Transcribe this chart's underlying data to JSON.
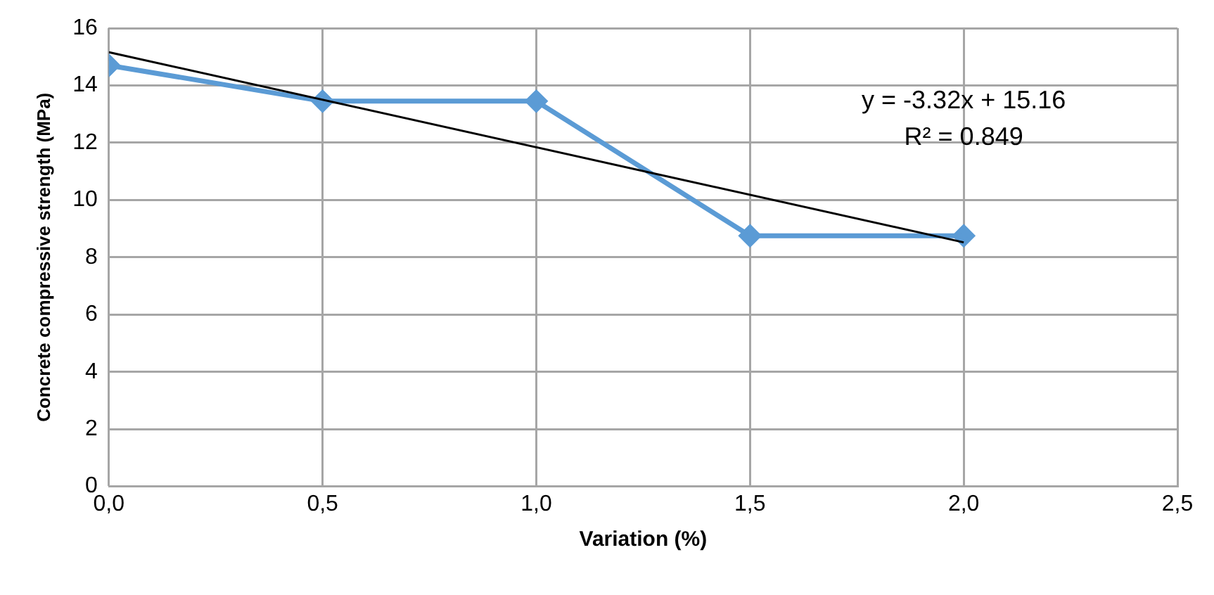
{
  "chart_data": {
    "type": "line",
    "xlabel": "Variation (%)",
    "ylabel": "Concrete compressive strength (MPa)",
    "x": [
      0,
      0.5,
      1.0,
      1.5,
      2.0
    ],
    "series": [
      {
        "color": "#5b9bd5",
        "marker": "diamond",
        "values": [
          14.7,
          13.45,
          13.45,
          8.75,
          8.75
        ]
      },
      {
        "color": "#000000",
        "marker": "none",
        "x": [
          0,
          2.0
        ],
        "values": [
          15.16,
          8.52
        ]
      }
    ],
    "xlim": [
      0,
      2.5
    ],
    "xticks": [
      {
        "value": 0,
        "label": "0,0"
      },
      {
        "value": 0.5,
        "label": "0,5"
      },
      {
        "value": 1.0,
        "label": "1,0"
      },
      {
        "value": 1.5,
        "label": "1,5"
      },
      {
        "value": 2.0,
        "label": "2,0"
      },
      {
        "value": 2.5,
        "label": "2,5"
      }
    ],
    "ylim": [
      0,
      16
    ],
    "yticks": [
      0,
      2,
      4,
      6,
      8,
      10,
      12,
      14,
      16
    ],
    "annotations": [
      "y = -3.32x + 15.16",
      "R² = 0.849"
    ],
    "grid": true,
    "legend": false
  }
}
